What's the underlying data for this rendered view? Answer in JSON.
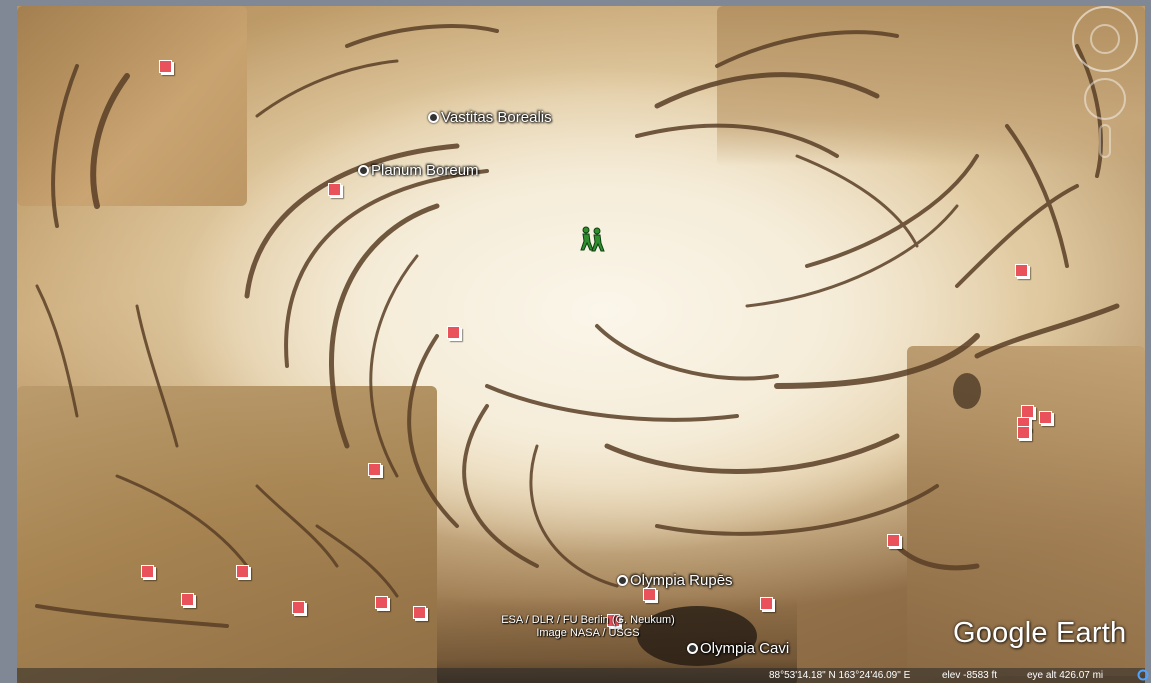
{
  "map": {
    "places": [
      {
        "name": "Vastitas Borealis"
      },
      {
        "name": "Planum Boreum"
      },
      {
        "name": "Olympia Rupēs"
      },
      {
        "name": "Olympia Cavi"
      }
    ],
    "marker_color": "#e9525a",
    "attribution_line1": "ESA / DLR / FU Berlin (G. Neukum)",
    "attribution_line2": "Image NASA / USGS",
    "logo_text": "Google Earth"
  },
  "status": {
    "coordinates": "88°53'14.18\" N  163°24'46.09\" E",
    "elevation": "elev -8583 ft",
    "eye_altitude": "eye alt 426.07 mi"
  }
}
